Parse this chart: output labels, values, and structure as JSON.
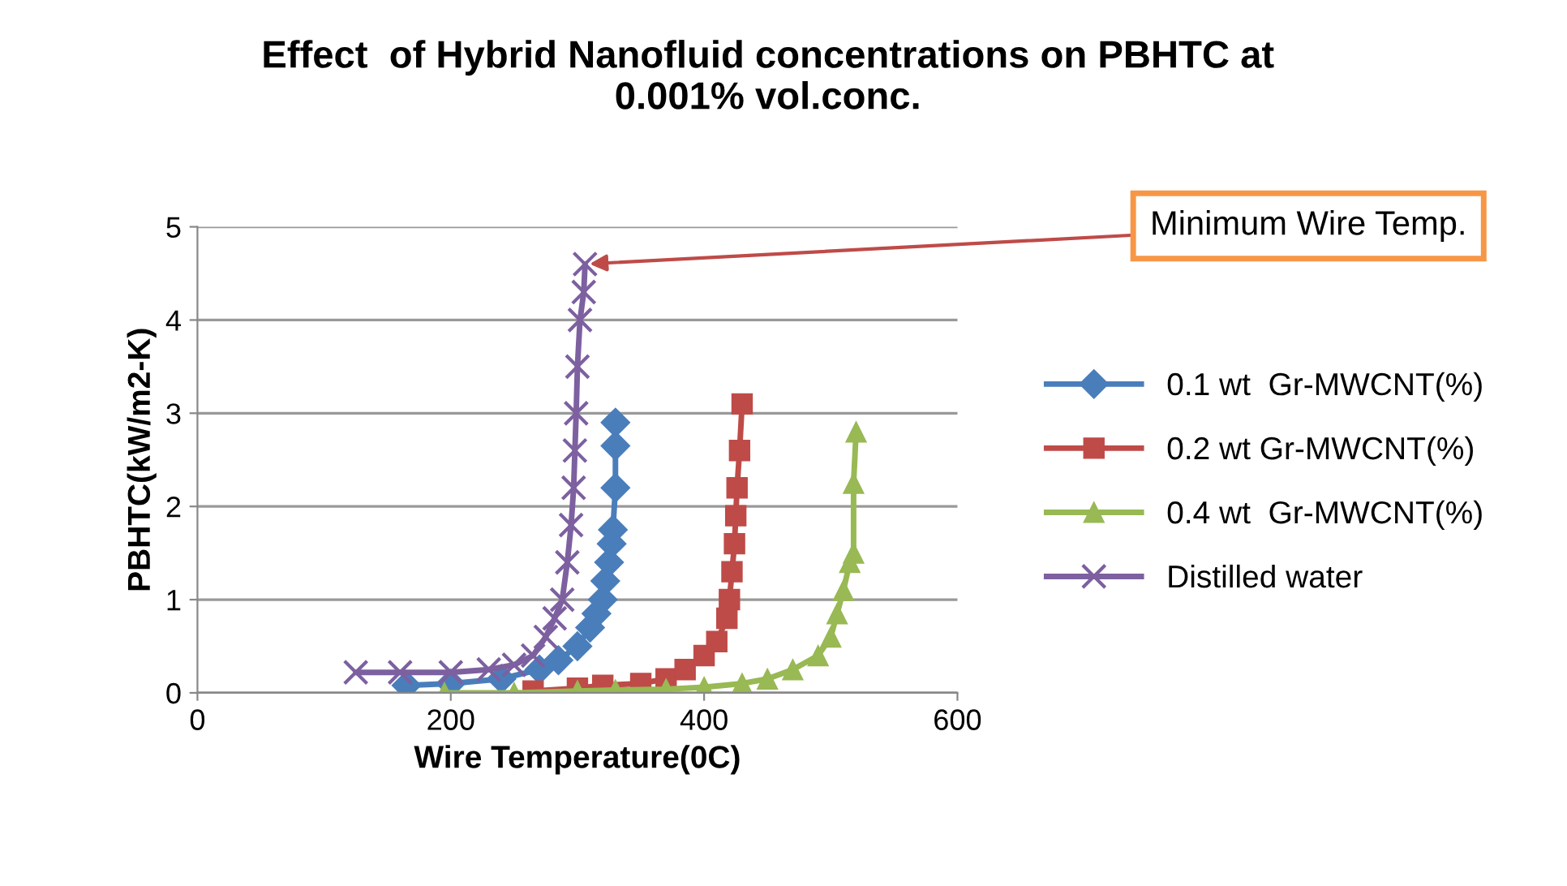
{
  "chart_data": {
    "type": "line",
    "title": "Effect  of Hybrid Nanofluid concentrations on PBHTC at\n0.001% vol.conc.",
    "xlabel": "Wire Temperature(0C)",
    "ylabel": "PBHTC(kW/m2-K)",
    "xlim": [
      0,
      600
    ],
    "xticks": [
      0,
      200,
      400,
      600
    ],
    "ylim": [
      0,
      5
    ],
    "yticks": [
      0,
      1,
      2,
      3,
      4,
      5
    ],
    "grid": "y",
    "legend": "right",
    "annotations": [
      {
        "text": "Minimum Wire Temp.",
        "x": 306,
        "y": 4.6
      }
    ],
    "series": [
      {
        "name": "0.1 wt  Gr-MWCNT(%)",
        "color": "#4a7ebb",
        "marker": "diamond",
        "x": [
          165,
          200,
          240,
          270,
          285,
          300,
          310,
          315,
          320,
          322,
          325,
          327,
          328,
          330,
          330,
          330
        ],
        "values": [
          0.08,
          0.1,
          0.15,
          0.25,
          0.35,
          0.5,
          0.7,
          0.85,
          1.0,
          1.2,
          1.4,
          1.6,
          1.75,
          2.2,
          2.65,
          2.9
        ]
      },
      {
        "name": "0.2 wt Gr-MWCNT(%)",
        "color": "#be4b48",
        "marker": "square",
        "x": [
          265,
          300,
          320,
          350,
          370,
          385,
          400,
          410,
          418,
          420,
          422,
          424,
          425,
          426,
          428,
          430
        ],
        "values": [
          0.02,
          0.05,
          0.08,
          0.1,
          0.15,
          0.25,
          0.4,
          0.55,
          0.8,
          1.0,
          1.3,
          1.6,
          1.9,
          2.2,
          2.6,
          3.1
        ]
      },
      {
        "name": "0.4 wt  Gr-MWCNT(%)",
        "color": "#98b954",
        "marker": "triangle",
        "x": [
          195,
          250,
          300,
          330,
          370,
          400,
          430,
          450,
          470,
          490,
          500,
          505,
          510,
          515,
          518,
          518,
          520
        ],
        "values": [
          0.0,
          0.0,
          0.02,
          0.03,
          0.04,
          0.06,
          0.1,
          0.15,
          0.25,
          0.4,
          0.6,
          0.85,
          1.1,
          1.4,
          1.5,
          2.25,
          2.8
        ]
      },
      {
        "name": "Distilled water",
        "color": "#7d60a0",
        "marker": "cross",
        "x": [
          125,
          160,
          200,
          230,
          250,
          265,
          275,
          282,
          288,
          292,
          295,
          297,
          298,
          299,
          300,
          302,
          305,
          306
        ],
        "values": [
          0.22,
          0.22,
          0.22,
          0.25,
          0.3,
          0.4,
          0.6,
          0.8,
          1.0,
          1.4,
          1.8,
          2.2,
          2.6,
          3.0,
          3.5,
          4.0,
          4.3,
          4.6
        ]
      }
    ]
  }
}
